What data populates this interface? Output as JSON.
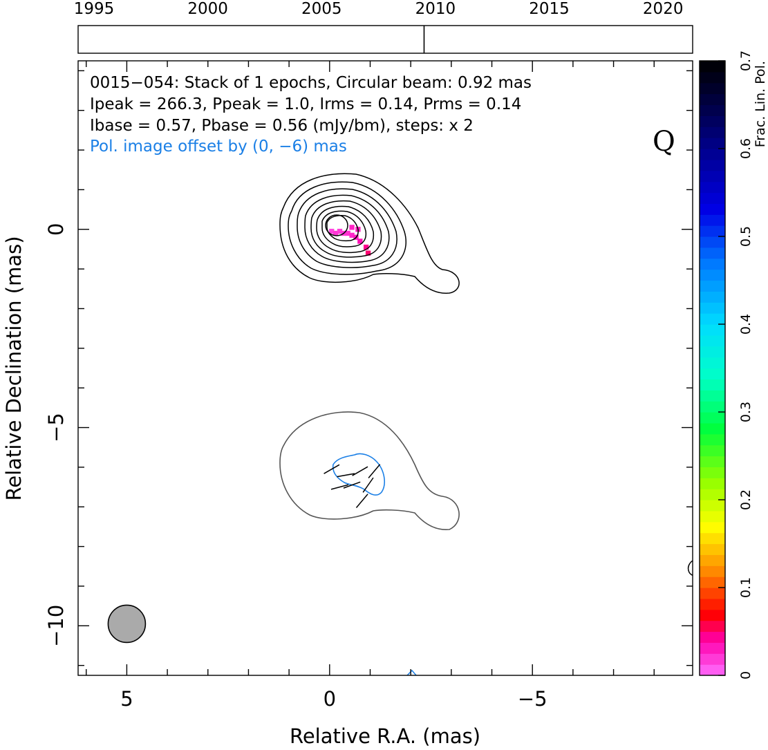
{
  "chart_data": {
    "type": "contour",
    "annotations": {
      "line1": "0015−054: Stack of 1 epochs, Circular beam: 0.92 mas",
      "line2": "Ipeak = 266.3, Ppeak = 1.0, Irms = 0.14, Prms = 0.14",
      "line3": "Ibase = 0.57, Pbase = 0.56 (mJy/bm), steps: x 2",
      "offset_note": "Pol. image offset by (0, −6) mas",
      "band": "Q"
    },
    "xlabel": "Relative R.A. (mas)",
    "ylabel": "Relative Declination (mas)",
    "xlim": [
      6.2,
      -8.95
    ],
    "ylim": [
      -11.25,
      4.25
    ],
    "x_ticks": [
      {
        "v": 5,
        "label": "5"
      },
      {
        "v": 0,
        "label": "0"
      },
      {
        "v": -5,
        "label": "−5"
      }
    ],
    "y_ticks": [
      {
        "v": 0,
        "label": "0"
      },
      {
        "v": -5,
        "label": "−5"
      },
      {
        "v": -10,
        "label": "−10"
      }
    ],
    "beam": {
      "x": 5.0,
      "y": -9.95,
      "diameter_mas": 0.92,
      "color": "#aaaaaa"
    },
    "timeline": {
      "xlim": [
        1994.3,
        2021.3
      ],
      "ticks": [
        {
          "v": 1995,
          "label": "1995"
        },
        {
          "v": 2000,
          "label": "2000"
        },
        {
          "v": 2005,
          "label": "2005"
        },
        {
          "v": 2010,
          "label": "2010"
        },
        {
          "v": 2015,
          "label": "2015"
        },
        {
          "v": 2020,
          "label": "2020"
        }
      ],
      "epochs": [
        2009.5
      ]
    },
    "colorbar": {
      "label": "Frac. Lin. Pol.",
      "range": [
        0,
        0.7
      ],
      "ticks": [
        {
          "v": 0,
          "label": "0"
        },
        {
          "v": 0.1,
          "label": "0.1"
        },
        {
          "v": 0.2,
          "label": "0.2"
        },
        {
          "v": 0.3,
          "label": "0.3"
        },
        {
          "v": 0.4,
          "label": "0.4"
        },
        {
          "v": 0.5,
          "label": "0.5"
        },
        {
          "v": 0.6,
          "label": "0.6"
        },
        {
          "v": 0.7,
          "label": "0.7"
        }
      ]
    },
    "colors": {
      "stokes_i_contours": "#000000",
      "pol_offset_contour": "#555555",
      "pol_boundary": "#1a7fe6",
      "offset_note": "#1a7fe6"
    },
    "frac_pol_pixels": [
      {
        "x": -0.05,
        "y": -0.05,
        "v": 0.015
      },
      {
        "x": -0.15,
        "y": -0.1,
        "v": 0.02
      },
      {
        "x": -0.25,
        "y": -0.05,
        "v": 0.018
      },
      {
        "x": -0.35,
        "y": -0.1,
        "v": 0.02
      },
      {
        "x": -0.45,
        "y": -0.1,
        "v": 0.022
      },
      {
        "x": -0.55,
        "y": -0.15,
        "v": 0.025
      },
      {
        "x": -0.65,
        "y": -0.2,
        "v": 0.03
      },
      {
        "x": -0.75,
        "y": -0.3,
        "v": 0.035
      },
      {
        "x": -0.9,
        "y": -0.45,
        "v": 0.045
      },
      {
        "x": -0.95,
        "y": -0.6,
        "v": 0.05
      },
      {
        "x": -0.55,
        "y": 0.05,
        "v": 0.028
      },
      {
        "x": -0.7,
        "y": 0.0,
        "v": 0.03
      }
    ],
    "evpa_sticks": [
      {
        "x": -0.05,
        "y": -6.05,
        "angle_deg": 30
      },
      {
        "x": -0.4,
        "y": -6.2,
        "angle_deg": 10
      },
      {
        "x": -0.75,
        "y": -6.1,
        "angle_deg": 30
      },
      {
        "x": -1.1,
        "y": -6.1,
        "angle_deg": 50
      },
      {
        "x": -0.25,
        "y": -6.5,
        "angle_deg": 15
      },
      {
        "x": -0.55,
        "y": -6.45,
        "angle_deg": 20
      },
      {
        "x": -0.95,
        "y": -6.45,
        "angle_deg": 55
      },
      {
        "x": -0.8,
        "y": -6.85,
        "angle_deg": 50
      }
    ]
  }
}
